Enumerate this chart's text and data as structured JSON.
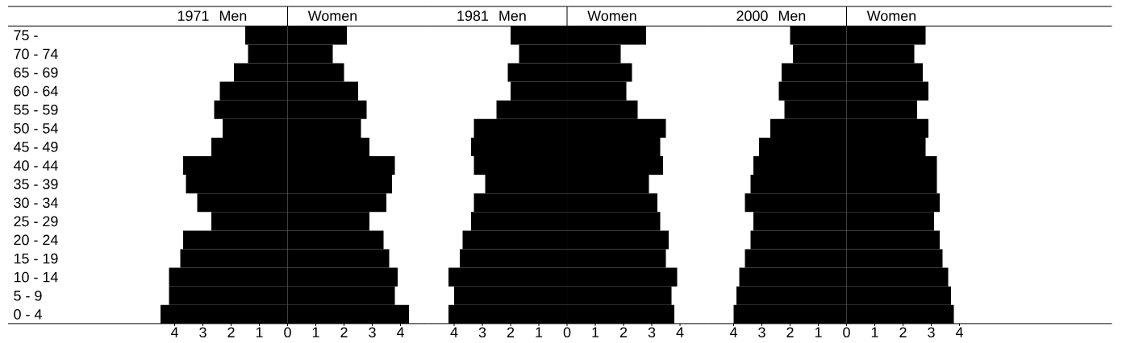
{
  "chart_data": [
    {
      "type": "bar",
      "orientation": "horizontal",
      "stacked": true,
      "title": "1971",
      "categories": [
        "75 -",
        "70 - 74",
        "65 - 69",
        "60 - 64",
        "55 - 59",
        "50 - 54",
        "45 - 49",
        "40 - 44",
        "35 - 39",
        "30 - 34",
        "25 - 29",
        "20 - 24",
        "15 - 19",
        "10 - 14",
        "5 - 9",
        "0 - 4"
      ],
      "series": [
        {
          "name": "Men",
          "color": "#000000",
          "values": [
            -1.5,
            -1.4,
            -1.9,
            -2.4,
            -2.6,
            -2.3,
            -2.7,
            -3.7,
            -3.6,
            -3.2,
            -2.7,
            -3.7,
            -3.8,
            -4.2,
            -4.2,
            -4.5
          ]
        },
        {
          "name": "Women",
          "color": "#000000",
          "values": [
            2.1,
            1.6,
            2.0,
            2.5,
            2.8,
            2.6,
            2.9,
            3.8,
            3.7,
            3.5,
            2.9,
            3.4,
            3.6,
            3.9,
            3.8,
            4.3
          ]
        }
      ],
      "xlim": [
        -9.9,
        4.95
      ],
      "xticks": [
        {
          "value": -4,
          "label": "4"
        },
        {
          "value": -3,
          "label": "3"
        },
        {
          "value": -2,
          "label": "2"
        },
        {
          "value": -1,
          "label": "1"
        },
        0,
        1,
        2,
        3,
        4
      ]
    },
    {
      "type": "bar",
      "orientation": "horizontal",
      "stacked": true,
      "title": "1981",
      "categories": [
        null,
        null,
        null,
        null,
        null,
        null,
        null,
        null,
        null,
        null,
        null,
        null,
        null,
        null,
        null,
        null
      ],
      "series": [
        {
          "name": "Men",
          "color": "#000000",
          "values": [
            -2.0,
            -1.7,
            -2.1,
            -2.0,
            -2.5,
            -3.3,
            -3.4,
            -3.3,
            -2.9,
            -3.3,
            -3.4,
            -3.7,
            -3.8,
            -4.2,
            -4.0,
            -4.2
          ]
        },
        {
          "name": "Women",
          "color": "#000000",
          "values": [
            2.8,
            1.9,
            2.3,
            2.1,
            2.5,
            3.5,
            3.3,
            3.4,
            2.9,
            3.2,
            3.3,
            3.6,
            3.5,
            3.9,
            3.7,
            3.8
          ]
        }
      ],
      "xlim": [
        -4.95,
        4.95
      ],
      "xticks": [
        {
          "value": -4,
          "label": "4"
        },
        {
          "value": -3,
          "label": "3"
        },
        {
          "value": -2,
          "label": "2"
        },
        {
          "value": -1,
          "label": "1"
        },
        0,
        1,
        2,
        3,
        4
      ],
      "tick_labels": "x"
    },
    {
      "type": "bar",
      "orientation": "horizontal",
      "stacked": true,
      "title": "2000",
      "categories": [
        null,
        null,
        null,
        null,
        null,
        null,
        null,
        null,
        null,
        null,
        null,
        null,
        null,
        null,
        null,
        null
      ],
      "series": [
        {
          "name": "Men",
          "color": "#000000",
          "values": [
            -2.0,
            -1.9,
            -2.3,
            -2.4,
            -2.2,
            -2.7,
            -3.1,
            -3.3,
            -3.4,
            -3.6,
            -3.3,
            -3.4,
            -3.6,
            -3.8,
            -3.9,
            -4.0
          ]
        },
        {
          "name": "Women",
          "color": "#000000",
          "values": [
            2.8,
            2.4,
            2.7,
            2.9,
            2.5,
            2.9,
            2.8,
            3.2,
            3.2,
            3.3,
            3.1,
            3.3,
            3.4,
            3.6,
            3.7,
            3.8
          ]
        }
      ],
      "xlim": [
        -4.95,
        9.4
      ],
      "xticks": [
        {
          "value": -4,
          "label": "4"
        },
        {
          "value": -3,
          "label": "3"
        },
        {
          "value": -2,
          "label": "2"
        },
        {
          "value": -1,
          "label": "1"
        },
        0,
        1,
        2,
        3,
        4
      ],
      "tick_labels": "x"
    }
  ]
}
